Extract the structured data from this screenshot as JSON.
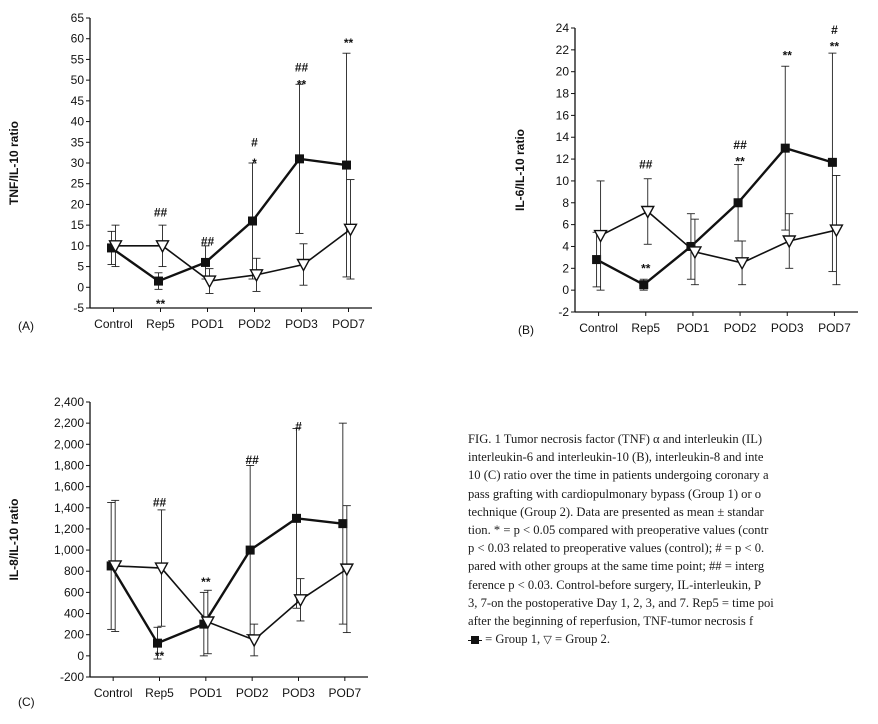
{
  "chart_data": [
    {
      "type": "line",
      "panel_label": "(A)",
      "ylabel": "TNF/IL-10 ratio",
      "ylim": [
        -5,
        65
      ],
      "yticks": [
        -5,
        0,
        5,
        10,
        15,
        20,
        25,
        30,
        35,
        40,
        45,
        50,
        55,
        60,
        65
      ],
      "ytick_labels": [
        "-5",
        "0",
        "5",
        "10",
        "15",
        "20",
        "25",
        "30",
        "35",
        "40",
        "45",
        "50",
        "55",
        "60",
        "65"
      ],
      "categories": [
        "Control",
        "Rep5",
        "POD1",
        "POD2",
        "POD3",
        "POD7"
      ],
      "series": [
        {
          "marker": "square",
          "values": [
            9.5,
            1.5,
            6,
            16,
            31,
            29.5
          ],
          "err": [
            4,
            2,
            4,
            14,
            18,
            27
          ]
        },
        {
          "marker": "triangle",
          "values": [
            10,
            10,
            1.5,
            3,
            5.5,
            14
          ],
          "err": [
            5,
            5,
            3,
            4,
            5,
            12
          ]
        }
      ],
      "annotations": [
        {
          "category": "Rep5",
          "y": 18,
          "text": "##"
        },
        {
          "category": "Rep5",
          "y": -4,
          "text": "**"
        },
        {
          "category": "POD1",
          "y": 11,
          "text": "##"
        },
        {
          "category": "POD2",
          "y": 35,
          "text": "#"
        },
        {
          "category": "POD2",
          "y": 30,
          "text": "*"
        },
        {
          "category": "POD3",
          "y": 53,
          "text": "##"
        },
        {
          "category": "POD3",
          "y": 49,
          "text": "**"
        },
        {
          "category": "POD7",
          "y": 59,
          "text": "**"
        }
      ]
    },
    {
      "type": "line",
      "panel_label": "(B)",
      "ylabel": "IL-6/IL-10 ratio",
      "ylim": [
        -2,
        24
      ],
      "yticks": [
        -2,
        0,
        2,
        4,
        6,
        8,
        10,
        12,
        14,
        16,
        18,
        20,
        22,
        24
      ],
      "ytick_labels": [
        "-2",
        "0",
        "2",
        "4",
        "6",
        "8",
        "10",
        "12",
        "14",
        "16",
        "18",
        "20",
        "22",
        "24"
      ],
      "categories": [
        "Control",
        "Rep5",
        "POD1",
        "POD2",
        "POD3",
        "POD7"
      ],
      "series": [
        {
          "marker": "square",
          "values": [
            2.8,
            0.5,
            4,
            8,
            13,
            11.7
          ],
          "err": [
            2.5,
            0.5,
            3,
            3.5,
            7.5,
            10
          ]
        },
        {
          "marker": "triangle",
          "values": [
            5,
            7.2,
            3.5,
            2.5,
            4.5,
            5.5
          ],
          "err": [
            5,
            3,
            3,
            2,
            2.5,
            5
          ]
        }
      ],
      "annotations": [
        {
          "category": "Rep5",
          "y": 11.5,
          "text": "##"
        },
        {
          "category": "Rep5",
          "y": 2,
          "text": "**"
        },
        {
          "category": "POD2",
          "y": 13.3,
          "text": "##"
        },
        {
          "category": "POD2",
          "y": 11.8,
          "text": "**"
        },
        {
          "category": "POD3",
          "y": 21.5,
          "text": "**"
        },
        {
          "category": "POD7",
          "y": 23.8,
          "text": "#"
        },
        {
          "category": "POD7",
          "y": 22.3,
          "text": "**"
        }
      ]
    },
    {
      "type": "line",
      "panel_label": "(C)",
      "ylabel": "IL-8/IL-10 ratio",
      "ylim": [
        -200,
        2400
      ],
      "yticks": [
        -200,
        0,
        200,
        400,
        600,
        800,
        1000,
        1200,
        1400,
        1600,
        1800,
        2000,
        2200,
        2400
      ],
      "ytick_labels": [
        "-200",
        "0",
        "200",
        "400",
        "600",
        "800",
        "1,000",
        "1,200",
        "1,400",
        "1,600",
        "1,800",
        "2,000",
        "2,200",
        "2,400"
      ],
      "categories": [
        "Control",
        "Rep5",
        "POD1",
        "POD2",
        "POD3",
        "POD7"
      ],
      "series": [
        {
          "marker": "square",
          "values": [
            850,
            120,
            300,
            1000,
            1300,
            1250
          ],
          "err": [
            600,
            150,
            300,
            800,
            850,
            950
          ]
        },
        {
          "marker": "triangle",
          "values": [
            850,
            830,
            320,
            150,
            530,
            820
          ],
          "err": [
            620,
            550,
            300,
            150,
            200,
            600
          ]
        }
      ],
      "annotations": [
        {
          "category": "Rep5",
          "y": 1450,
          "text": "##"
        },
        {
          "category": "Rep5",
          "y": 0,
          "text": "**"
        },
        {
          "category": "POD1",
          "y": 700,
          "text": "**"
        },
        {
          "category": "POD2",
          "y": 1850,
          "text": "##"
        },
        {
          "category": "POD3",
          "y": 2170,
          "text": "#"
        }
      ]
    }
  ],
  "caption": {
    "lines": [
      "FIG. 1   Tumor necrosis factor (TNF) α and interleukin (IL)",
      "interleukin-6 and interleukin-10 (B), interleukin-8 and inte",
      "10 (C) ratio over the time in patients undergoing coronary a",
      "pass grafting with cardiopulmonary bypass (Group 1) or o",
      "technique (Group 2). Data are presented as mean ± standar",
      "tion. * = p < 0.05 compared with preoperative values (contr",
      "p < 0.03 related to preoperative values (control); # = p < 0.",
      "pared with other groups at the same time point; ## = interg",
      "ference p < 0.03. Control-before surgery, IL-interleukin, P",
      "3, 7-on the postoperative Day 1, 2, 3, and 7. Rep5 = time poi",
      "after the beginning of reperfusion, TNF-tumor necrosis f"
    ],
    "legend_group1": "= Group 1,",
    "legend_group2": "= Group 2."
  }
}
